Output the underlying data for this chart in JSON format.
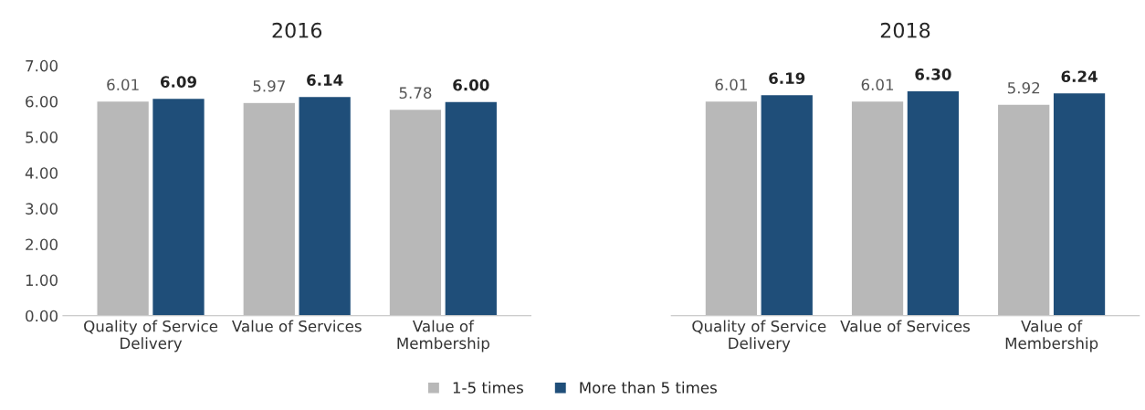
{
  "chart_data": [
    {
      "type": "bar",
      "title": "2016",
      "categories": [
        "Quality of Service\nDelivery",
        "Value of Services",
        "Value of\nMembership"
      ],
      "series": [
        {
          "name": "1-5 times",
          "color": "#b8b8b8",
          "values": [
            6.01,
            5.97,
            5.78
          ],
          "value_labels": [
            "6.01",
            "5.97",
            "5.78"
          ]
        },
        {
          "name": "More than 5 times",
          "color": "#1f4e79",
          "values": [
            6.09,
            6.14,
            6.0
          ],
          "value_labels": [
            "6.09",
            "6.14",
            "6.00"
          ]
        }
      ],
      "ylim": [
        0,
        7
      ],
      "yticks": [
        {
          "value": 0,
          "label": "0.00"
        },
        {
          "value": 1,
          "label": "1.00"
        },
        {
          "value": 2,
          "label": "2.00"
        },
        {
          "value": 3,
          "label": "3.00"
        },
        {
          "value": 4,
          "label": "4.00"
        },
        {
          "value": 5,
          "label": "5.00"
        },
        {
          "value": 6,
          "label": "6.00"
        },
        {
          "value": 7,
          "label": "7.00"
        }
      ],
      "legend": "bottom"
    },
    {
      "type": "bar",
      "title": "2018",
      "categories": [
        "Quality of Service\nDelivery",
        "Value of Services",
        "Value of\nMembership"
      ],
      "series": [
        {
          "color": "#b8b8b8",
          "values": [
            6.01,
            6.01,
            5.92
          ],
          "value_labels": [
            "6.01",
            "6.01",
            "5.92"
          ]
        },
        {
          "color": "#1f4e79",
          "values": [
            6.19,
            6.3,
            6.24
          ],
          "value_labels": [
            "6.19",
            "6.30",
            "6.24"
          ]
        }
      ],
      "ylim": [
        0,
        7
      ],
      "tick_labels": "x"
    }
  ]
}
